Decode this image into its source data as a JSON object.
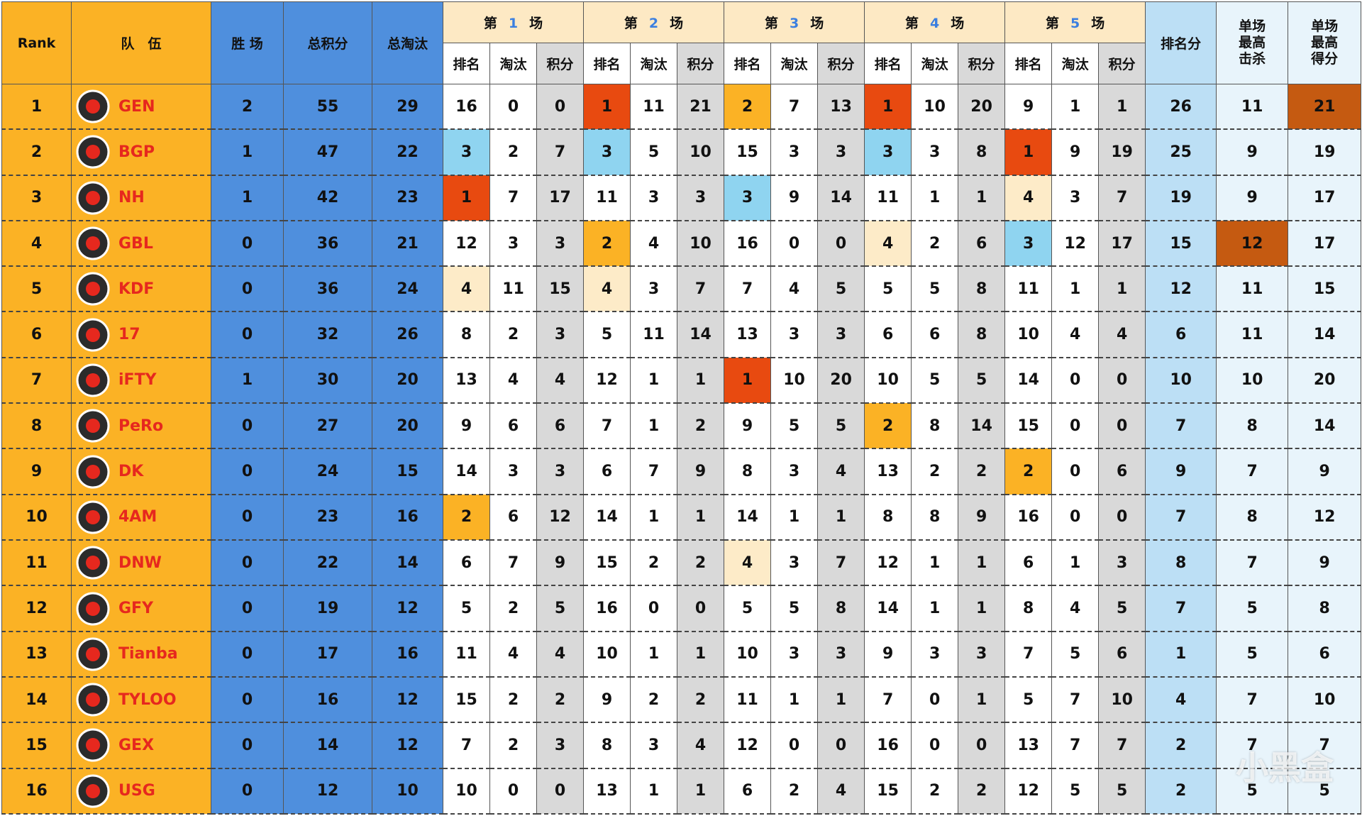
{
  "header": {
    "rank": "Rank",
    "team": "队　伍",
    "wins": "胜 场",
    "total_points": "总积分",
    "total_kills": "总淘汰",
    "games": [
      {
        "prefix": "第",
        "number": "1",
        "suffix": "场"
      },
      {
        "prefix": "第",
        "number": "2",
        "suffix": "场"
      },
      {
        "prefix": "第",
        "number": "3",
        "suffix": "场"
      },
      {
        "prefix": "第",
        "number": "4",
        "suffix": "场"
      },
      {
        "prefix": "第",
        "number": "5",
        "suffix": "场"
      }
    ],
    "sub_columns": [
      "排名",
      "淘汰",
      "积分"
    ],
    "placement_points": "排名分",
    "max_kills": "单场最高击杀",
    "max_points": "单场最高得分"
  },
  "rows": [
    {
      "rank": 1,
      "team": "GEN",
      "wins": 2,
      "total_points": 55,
      "total_kills": 29,
      "games": [
        [
          16,
          0,
          0
        ],
        [
          1,
          11,
          21
        ],
        [
          2,
          7,
          13
        ],
        [
          1,
          10,
          20
        ],
        [
          9,
          1,
          1
        ]
      ],
      "placement_points": 26,
      "max_kills": 11,
      "max_points": 21
    },
    {
      "rank": 2,
      "team": "BGP",
      "wins": 1,
      "total_points": 47,
      "total_kills": 22,
      "games": [
        [
          3,
          2,
          7
        ],
        [
          3,
          5,
          10
        ],
        [
          15,
          3,
          3
        ],
        [
          3,
          3,
          8
        ],
        [
          1,
          9,
          19
        ]
      ],
      "placement_points": 25,
      "max_kills": 9,
      "max_points": 19
    },
    {
      "rank": 3,
      "team": "NH",
      "wins": 1,
      "total_points": 42,
      "total_kills": 23,
      "games": [
        [
          1,
          7,
          17
        ],
        [
          11,
          3,
          3
        ],
        [
          3,
          9,
          14
        ],
        [
          11,
          1,
          1
        ],
        [
          4,
          3,
          7
        ]
      ],
      "placement_points": 19,
      "max_kills": 9,
      "max_points": 17
    },
    {
      "rank": 4,
      "team": "GBL",
      "wins": 0,
      "total_points": 36,
      "total_kills": 21,
      "games": [
        [
          12,
          3,
          3
        ],
        [
          2,
          4,
          10
        ],
        [
          16,
          0,
          0
        ],
        [
          4,
          2,
          6
        ],
        [
          3,
          12,
          17
        ]
      ],
      "placement_points": 15,
      "max_kills": 12,
      "max_points": 17
    },
    {
      "rank": 5,
      "team": "KDF",
      "wins": 0,
      "total_points": 36,
      "total_kills": 24,
      "games": [
        [
          4,
          11,
          15
        ],
        [
          4,
          3,
          7
        ],
        [
          7,
          4,
          5
        ],
        [
          5,
          5,
          8
        ],
        [
          11,
          1,
          1
        ]
      ],
      "placement_points": 12,
      "max_kills": 11,
      "max_points": 15
    },
    {
      "rank": 6,
      "team": "17",
      "wins": 0,
      "total_points": 32,
      "total_kills": 26,
      "games": [
        [
          8,
          2,
          3
        ],
        [
          5,
          11,
          14
        ],
        [
          13,
          3,
          3
        ],
        [
          6,
          6,
          8
        ],
        [
          10,
          4,
          4
        ]
      ],
      "placement_points": 6,
      "max_kills": 11,
      "max_points": 14
    },
    {
      "rank": 7,
      "team": "iFTY",
      "wins": 1,
      "total_points": 30,
      "total_kills": 20,
      "games": [
        [
          13,
          4,
          4
        ],
        [
          12,
          1,
          1
        ],
        [
          1,
          10,
          20
        ],
        [
          10,
          5,
          5
        ],
        [
          14,
          0,
          0
        ]
      ],
      "placement_points": 10,
      "max_kills": 10,
      "max_points": 20
    },
    {
      "rank": 8,
      "team": "PeRo",
      "wins": 0,
      "total_points": 27,
      "total_kills": 20,
      "games": [
        [
          9,
          6,
          6
        ],
        [
          7,
          1,
          2
        ],
        [
          9,
          5,
          5
        ],
        [
          2,
          8,
          14
        ],
        [
          15,
          0,
          0
        ]
      ],
      "placement_points": 7,
      "max_kills": 8,
      "max_points": 14
    },
    {
      "rank": 9,
      "team": "DK",
      "wins": 0,
      "total_points": 24,
      "total_kills": 15,
      "games": [
        [
          14,
          3,
          3
        ],
        [
          6,
          7,
          9
        ],
        [
          8,
          3,
          4
        ],
        [
          13,
          2,
          2
        ],
        [
          2,
          0,
          6
        ]
      ],
      "placement_points": 9,
      "max_kills": 7,
      "max_points": 9
    },
    {
      "rank": 10,
      "team": "4AM",
      "wins": 0,
      "total_points": 23,
      "total_kills": 16,
      "games": [
        [
          2,
          6,
          12
        ],
        [
          14,
          1,
          1
        ],
        [
          14,
          1,
          1
        ],
        [
          8,
          8,
          9
        ],
        [
          16,
          0,
          0
        ]
      ],
      "placement_points": 7,
      "max_kills": 8,
      "max_points": 12
    },
    {
      "rank": 11,
      "team": "DNW",
      "wins": 0,
      "total_points": 22,
      "total_kills": 14,
      "games": [
        [
          6,
          7,
          9
        ],
        [
          15,
          2,
          2
        ],
        [
          4,
          3,
          7
        ],
        [
          12,
          1,
          1
        ],
        [
          6,
          1,
          3
        ]
      ],
      "placement_points": 8,
      "max_kills": 7,
      "max_points": 9
    },
    {
      "rank": 12,
      "team": "GFY",
      "wins": 0,
      "total_points": 19,
      "total_kills": 12,
      "games": [
        [
          5,
          2,
          5
        ],
        [
          16,
          0,
          0
        ],
        [
          5,
          5,
          8
        ],
        [
          14,
          1,
          1
        ],
        [
          8,
          4,
          5
        ]
      ],
      "placement_points": 7,
      "max_kills": 5,
      "max_points": 8
    },
    {
      "rank": 13,
      "team": "Tianba",
      "wins": 0,
      "total_points": 17,
      "total_kills": 16,
      "games": [
        [
          11,
          4,
          4
        ],
        [
          10,
          1,
          1
        ],
        [
          10,
          3,
          3
        ],
        [
          9,
          3,
          3
        ],
        [
          7,
          5,
          6
        ]
      ],
      "placement_points": 1,
      "max_kills": 5,
      "max_points": 6
    },
    {
      "rank": 14,
      "team": "TYLOO",
      "wins": 0,
      "total_points": 16,
      "total_kills": 12,
      "games": [
        [
          15,
          2,
          2
        ],
        [
          9,
          2,
          2
        ],
        [
          11,
          1,
          1
        ],
        [
          7,
          0,
          1
        ],
        [
          5,
          7,
          10
        ]
      ],
      "placement_points": 4,
      "max_kills": 7,
      "max_points": 10
    },
    {
      "rank": 15,
      "team": "GEX",
      "wins": 0,
      "total_points": 14,
      "total_kills": 12,
      "games": [
        [
          7,
          2,
          3
        ],
        [
          8,
          3,
          4
        ],
        [
          12,
          0,
          0
        ],
        [
          16,
          0,
          0
        ],
        [
          13,
          7,
          7
        ]
      ],
      "placement_points": 2,
      "max_kills": 7,
      "max_points": 7
    },
    {
      "rank": 16,
      "team": "USG",
      "wins": 0,
      "total_points": 12,
      "total_kills": 10,
      "games": [
        [
          10,
          0,
          0
        ],
        [
          13,
          1,
          1
        ],
        [
          6,
          2,
          4
        ],
        [
          15,
          2,
          2
        ],
        [
          12,
          5,
          5
        ]
      ],
      "placement_points": 2,
      "max_kills": 5,
      "max_points": 5
    }
  ],
  "watermark": "小黑盒",
  "style": {
    "place_colors": {
      "1": "#e84a10",
      "2": "#fbb225",
      "3": "#8fd4f0",
      "4": "#fdebc8"
    },
    "max_color": "#c55a11"
  }
}
